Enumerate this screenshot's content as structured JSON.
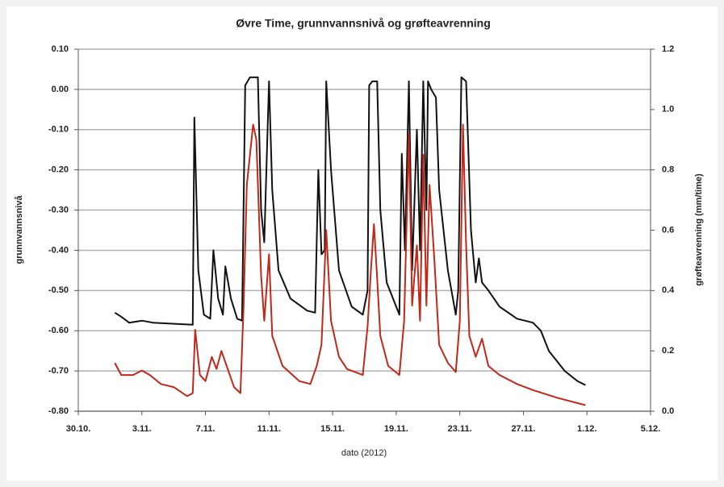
{
  "chart_data": {
    "type": "line",
    "title": "Øvre Time, grunnvannsnivå og grøfteavrenning",
    "xlabel": "dato (2012)",
    "ylabel": "grunnvannsnivå",
    "y2label": "grøfteavrenning (mm/time)",
    "xlim": [
      0,
      36
    ],
    "xticks": [
      {
        "value": 0,
        "label": "30.10."
      },
      {
        "value": 4,
        "label": "3.11."
      },
      {
        "value": 8,
        "label": "7.11."
      },
      {
        "value": 12,
        "label": "11.11."
      },
      {
        "value": 16,
        "label": "15.11."
      },
      {
        "value": 20,
        "label": "19.11."
      },
      {
        "value": 24,
        "label": "23.11."
      },
      {
        "value": 28,
        "label": "27.11."
      },
      {
        "value": 32,
        "label": "1.12."
      },
      {
        "value": 36,
        "label": "5.12."
      }
    ],
    "ylim": [
      -0.8,
      0.1
    ],
    "yticks": [
      {
        "value": 0.1,
        "label": "0.10"
      },
      {
        "value": 0,
        "label": "0.00"
      },
      {
        "value": -0.1,
        "label": "-0.10"
      },
      {
        "value": -0.2,
        "label": "-0.20"
      },
      {
        "value": -0.3,
        "label": "-0.30"
      },
      {
        "value": -0.4,
        "label": "-0.40"
      },
      {
        "value": -0.5,
        "label": "-0.50"
      },
      {
        "value": -0.6,
        "label": "-0.60"
      },
      {
        "value": -0.7,
        "label": "-0.70"
      },
      {
        "value": -0.8,
        "label": "-0.80"
      }
    ],
    "y2lim": [
      0,
      1.2
    ],
    "y2ticks": [
      1.2,
      {
        "value": 1.0,
        "label": "1.0"
      },
      0.8,
      0.6,
      0.4,
      0.2,
      {
        "value": 0,
        "label": "0.0"
      }
    ],
    "grid": true,
    "series": [
      {
        "color": "#111111",
        "x": [
          2.3,
          2.7,
          3.2,
          4.0,
          4.7,
          7.2,
          7.3,
          7.55,
          7.9,
          8.3,
          8.5,
          8.8,
          9.1,
          9.25,
          9.6,
          10.0,
          10.3,
          10.5,
          10.8,
          11.3,
          11.5,
          11.7,
          12.0,
          12.2,
          12.6,
          13.35,
          14.4,
          14.9,
          15.1,
          15.3,
          15.5,
          15.6,
          15.9,
          16.4,
          17.2,
          17.9,
          18.2,
          18.3,
          18.5,
          18.8,
          19.0,
          19.4,
          20.2,
          20.35,
          20.55,
          20.8,
          21.0,
          21.3,
          21.5,
          21.7,
          21.9,
          22.0,
          22.2,
          22.5,
          22.7,
          23.25,
          23.75,
          23.9,
          24.1,
          24.4,
          24.7,
          25.0,
          25.2,
          25.4,
          25.8,
          26.5,
          27.6,
          28.6,
          29.1,
          29.6,
          30.6,
          31.4,
          31.9
        ],
        "values": [
          -0.555,
          -0.565,
          -0.58,
          -0.575,
          -0.58,
          -0.585,
          -0.07,
          -0.45,
          -0.56,
          -0.57,
          -0.4,
          -0.52,
          -0.56,
          -0.44,
          -0.52,
          -0.57,
          -0.575,
          0.01,
          0.03,
          0.03,
          -0.3,
          -0.38,
          0.02,
          -0.25,
          -0.45,
          -0.52,
          -0.55,
          -0.555,
          -0.2,
          -0.41,
          -0.4,
          0.02,
          -0.2,
          -0.45,
          -0.54,
          -0.56,
          -0.5,
          0.01,
          0.02,
          0.02,
          -0.3,
          -0.48,
          -0.56,
          -0.16,
          -0.4,
          0.02,
          -0.45,
          -0.1,
          -0.4,
          0.02,
          -0.3,
          0.02,
          0.0,
          -0.02,
          -0.25,
          -0.45,
          -0.56,
          -0.5,
          0.03,
          0.02,
          -0.35,
          -0.48,
          -0.42,
          -0.48,
          -0.5,
          -0.54,
          -0.57,
          -0.58,
          -0.6,
          -0.65,
          -0.7,
          -0.725,
          -0.735
        ]
      },
      {
        "color": "#c0281a",
        "axis": "y2",
        "x": [
          2.3,
          2.7,
          3.45,
          4.0,
          4.5,
          5.2,
          6.0,
          6.85,
          7.2,
          7.35,
          7.65,
          8.0,
          8.4,
          8.7,
          9.0,
          9.4,
          9.8,
          10.2,
          10.4,
          10.6,
          11.0,
          11.2,
          11.5,
          11.7,
          12.0,
          12.2,
          12.85,
          13.9,
          14.6,
          15.0,
          15.3,
          15.6,
          15.9,
          16.4,
          16.9,
          17.9,
          18.2,
          18.4,
          18.6,
          18.8,
          19.0,
          19.5,
          20.2,
          20.5,
          20.8,
          21.0,
          21.3,
          21.5,
          21.7,
          21.9,
          22.1,
          22.4,
          22.7,
          23.25,
          23.75,
          24.0,
          24.2,
          24.4,
          24.6,
          25.0,
          25.4,
          25.8,
          26.5,
          27.6,
          28.6,
          30.1,
          31.9
        ],
        "values": [
          0.16,
          0.12,
          0.12,
          0.135,
          0.12,
          0.09,
          0.08,
          0.05,
          0.06,
          0.27,
          0.12,
          0.1,
          0.18,
          0.14,
          0.2,
          0.14,
          0.08,
          0.06,
          0.35,
          0.75,
          0.95,
          0.9,
          0.45,
          0.3,
          0.52,
          0.25,
          0.15,
          0.1,
          0.09,
          0.15,
          0.22,
          0.6,
          0.3,
          0.18,
          0.14,
          0.12,
          0.28,
          0.46,
          0.62,
          0.44,
          0.25,
          0.15,
          0.12,
          0.3,
          0.92,
          0.35,
          0.55,
          0.3,
          0.85,
          0.35,
          0.75,
          0.5,
          0.22,
          0.16,
          0.13,
          0.3,
          0.95,
          0.55,
          0.25,
          0.18,
          0.24,
          0.15,
          0.12,
          0.09,
          0.07,
          0.045,
          0.02
        ]
      }
    ]
  }
}
